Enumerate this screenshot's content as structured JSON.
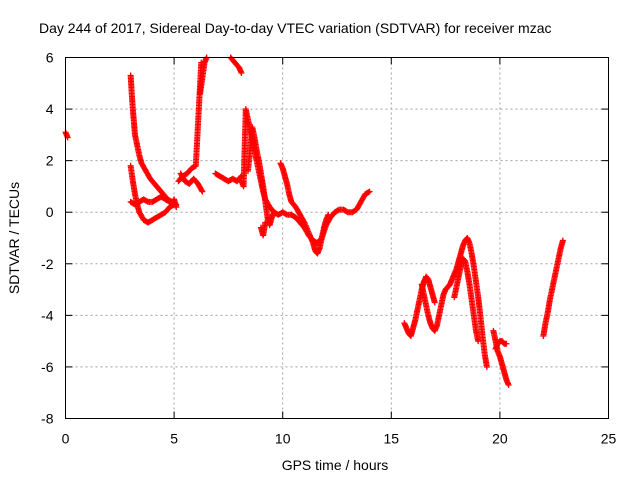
{
  "chart_data": {
    "type": "scatter",
    "title": "Day 244 of 2017, Sidereal Day-to-day VTEC variation (SDTVAR) for receiver mzac",
    "xlabel": "GPS time / hours",
    "ylabel": "SDTVAR / TECUs",
    "xlim": [
      0,
      25
    ],
    "ylim": [
      -8,
      6
    ],
    "xticks": [
      0,
      5,
      10,
      15,
      20,
      25
    ],
    "xtick_labels": [
      "0",
      "5",
      "10",
      "15",
      "20",
      "25"
    ],
    "yticks": [
      -8,
      -6,
      -4,
      -2,
      0,
      2,
      4,
      6
    ],
    "ytick_labels": [
      "-8",
      "-6",
      "-4",
      "-2",
      "0",
      "2",
      "4",
      "6"
    ],
    "grid": true,
    "marker": "+",
    "marker_color": "#ff0000",
    "series": [
      {
        "name": "seg1",
        "points": [
          [
            0.0,
            3.1
          ],
          [
            0.1,
            2.9
          ]
        ]
      },
      {
        "name": "seg2",
        "points": [
          [
            3.0,
            5.3
          ],
          [
            3.05,
            4.6
          ],
          [
            3.1,
            4.0
          ],
          [
            3.15,
            3.5
          ],
          [
            3.2,
            3.0
          ],
          [
            3.3,
            2.6
          ],
          [
            3.4,
            2.2
          ],
          [
            3.5,
            1.9
          ],
          [
            3.7,
            1.6
          ],
          [
            3.9,
            1.3
          ],
          [
            4.1,
            1.1
          ],
          [
            4.3,
            0.9
          ],
          [
            4.5,
            0.7
          ],
          [
            4.7,
            0.5
          ],
          [
            4.9,
            0.4
          ],
          [
            5.1,
            0.3
          ]
        ]
      },
      {
        "name": "seg3",
        "points": [
          [
            3.0,
            1.8
          ],
          [
            3.1,
            1.2
          ],
          [
            3.2,
            0.7
          ],
          [
            3.3,
            0.3
          ],
          [
            3.4,
            0.0
          ],
          [
            3.6,
            -0.3
          ],
          [
            3.8,
            -0.4
          ],
          [
            4.0,
            -0.3
          ],
          [
            4.2,
            -0.2
          ],
          [
            4.4,
            -0.1
          ],
          [
            4.6,
            0.0
          ],
          [
            4.8,
            0.2
          ],
          [
            5.0,
            0.3
          ]
        ]
      },
      {
        "name": "seg4",
        "points": [
          [
            3.0,
            0.4
          ],
          [
            3.2,
            0.3
          ],
          [
            3.4,
            0.4
          ],
          [
            3.6,
            0.5
          ],
          [
            3.8,
            0.4
          ],
          [
            4.0,
            0.4
          ],
          [
            4.2,
            0.5
          ],
          [
            4.4,
            0.6
          ],
          [
            4.6,
            0.5
          ],
          [
            4.8,
            0.4
          ]
        ]
      },
      {
        "name": "seg5",
        "points": [
          [
            4.9,
            0.3
          ],
          [
            5.0,
            0.5
          ],
          [
            5.1,
            0.2
          ]
        ]
      },
      {
        "name": "seg6",
        "points": [
          [
            5.2,
            1.2
          ],
          [
            5.4,
            1.4
          ],
          [
            5.6,
            1.5
          ],
          [
            5.8,
            1.7
          ],
          [
            6.0,
            1.8
          ],
          [
            6.05,
            2.6
          ],
          [
            6.1,
            3.4
          ],
          [
            6.15,
            4.2
          ],
          [
            6.2,
            5.0
          ],
          [
            6.25,
            5.8
          ]
        ]
      },
      {
        "name": "seg7",
        "points": [
          [
            5.3,
            1.5
          ],
          [
            5.5,
            1.2
          ],
          [
            5.7,
            1.1
          ],
          [
            5.9,
            1.3
          ],
          [
            6.1,
            1.1
          ],
          [
            6.3,
            0.8
          ]
        ]
      },
      {
        "name": "seg8",
        "points": [
          [
            6.2,
            4.6
          ],
          [
            6.3,
            5.2
          ],
          [
            6.4,
            5.8
          ],
          [
            6.5,
            6.0
          ]
        ]
      },
      {
        "name": "seg9",
        "points": [
          [
            7.6,
            6.0
          ],
          [
            7.8,
            5.8
          ],
          [
            8.0,
            5.6
          ],
          [
            8.1,
            5.4
          ]
        ]
      },
      {
        "name": "seg10",
        "points": [
          [
            6.9,
            1.5
          ],
          [
            7.1,
            1.4
          ],
          [
            7.3,
            1.3
          ],
          [
            7.5,
            1.2
          ],
          [
            7.7,
            1.3
          ],
          [
            7.9,
            1.2
          ],
          [
            8.1,
            1.4
          ]
        ]
      },
      {
        "name": "seg11",
        "points": [
          [
            8.1,
            1.2
          ],
          [
            8.2,
            1.0
          ],
          [
            8.3,
            4.0
          ],
          [
            8.4,
            3.6
          ],
          [
            8.5,
            3.2
          ],
          [
            8.6,
            2.8
          ],
          [
            8.7,
            2.4
          ],
          [
            8.8,
            2.0
          ],
          [
            8.9,
            1.6
          ],
          [
            9.0,
            1.2
          ],
          [
            9.1,
            0.8
          ],
          [
            9.2,
            0.5
          ],
          [
            9.4,
            0.2
          ],
          [
            9.6,
            0.0
          ],
          [
            9.8,
            -0.1
          ],
          [
            10.0,
            0.0
          ],
          [
            10.2,
            -0.1
          ],
          [
            10.4,
            -0.1
          ]
        ]
      },
      {
        "name": "seg12",
        "points": [
          [
            8.4,
            1.6
          ],
          [
            8.5,
            2.4
          ],
          [
            8.6,
            3.3
          ],
          [
            8.7,
            2.9
          ],
          [
            8.8,
            2.4
          ],
          [
            8.9,
            2.0
          ],
          [
            9.0,
            1.5
          ],
          [
            9.1,
            1.0
          ],
          [
            9.2,
            0.4
          ],
          [
            9.3,
            -0.2
          ],
          [
            9.4,
            -0.5
          ],
          [
            9.5,
            -0.2
          ],
          [
            9.6,
            0.0
          ]
        ]
      },
      {
        "name": "seg13",
        "points": [
          [
            9.0,
            -0.6
          ],
          [
            9.1,
            -0.9
          ],
          [
            9.2,
            -0.4
          ]
        ]
      },
      {
        "name": "seg14",
        "points": [
          [
            9.9,
            1.9
          ],
          [
            10.0,
            1.7
          ],
          [
            10.1,
            1.4
          ],
          [
            10.2,
            1.1
          ],
          [
            10.3,
            0.7
          ],
          [
            10.4,
            0.4
          ],
          [
            10.6,
            0.2
          ],
          [
            10.8,
            -0.1
          ],
          [
            11.0,
            -0.4
          ],
          [
            11.2,
            -0.8
          ],
          [
            11.4,
            -1.2
          ],
          [
            11.5,
            -1.5
          ],
          [
            11.6,
            -1.6
          ],
          [
            11.7,
            -1.4
          ],
          [
            11.8,
            -1.0
          ],
          [
            11.9,
            -0.6
          ],
          [
            12.0,
            -0.3
          ],
          [
            12.1,
            -0.1
          ]
        ]
      },
      {
        "name": "seg15",
        "points": [
          [
            10.4,
            -0.1
          ],
          [
            10.6,
            -0.2
          ],
          [
            10.8,
            -0.4
          ],
          [
            11.0,
            -0.6
          ],
          [
            11.2,
            -0.9
          ],
          [
            11.4,
            -1.1
          ],
          [
            11.6,
            -1.2
          ],
          [
            11.8,
            -1.0
          ],
          [
            12.0,
            -0.5
          ],
          [
            12.2,
            -0.2
          ],
          [
            12.4,
            0.0
          ],
          [
            12.6,
            0.1
          ],
          [
            12.8,
            0.1
          ],
          [
            13.0,
            0.0
          ],
          [
            13.2,
            0.0
          ],
          [
            13.4,
            0.1
          ],
          [
            13.6,
            0.4
          ],
          [
            13.8,
            0.7
          ],
          [
            14.0,
            0.8
          ]
        ]
      },
      {
        "name": "seg16",
        "points": [
          [
            15.6,
            -4.3
          ],
          [
            15.7,
            -4.5
          ],
          [
            15.8,
            -4.7
          ],
          [
            15.9,
            -4.8
          ],
          [
            16.0,
            -4.5
          ],
          [
            16.1,
            -4.2
          ],
          [
            16.2,
            -3.8
          ],
          [
            16.3,
            -3.4
          ],
          [
            16.4,
            -3.0
          ],
          [
            16.5,
            -2.7
          ],
          [
            16.6,
            -2.5
          ],
          [
            16.7,
            -2.6
          ],
          [
            16.8,
            -2.9
          ],
          [
            16.9,
            -3.2
          ],
          [
            17.0,
            -3.5
          ]
        ]
      },
      {
        "name": "seg17",
        "points": [
          [
            16.4,
            -2.8
          ],
          [
            16.5,
            -3.2
          ],
          [
            16.6,
            -3.6
          ],
          [
            16.7,
            -4.0
          ],
          [
            16.8,
            -4.3
          ],
          [
            16.9,
            -4.5
          ],
          [
            17.0,
            -4.6
          ],
          [
            17.1,
            -4.4
          ],
          [
            17.2,
            -4.0
          ],
          [
            17.3,
            -3.6
          ],
          [
            17.4,
            -3.2
          ],
          [
            17.5,
            -3.0
          ],
          [
            17.6,
            -2.9
          ],
          [
            17.7,
            -2.8
          ],
          [
            17.8,
            -2.6
          ],
          [
            17.9,
            -2.4
          ],
          [
            18.0,
            -2.2
          ],
          [
            18.1,
            -1.9
          ],
          [
            18.2,
            -1.6
          ],
          [
            18.3,
            -1.3
          ],
          [
            18.4,
            -1.1
          ],
          [
            18.5,
            -1.0
          ],
          [
            18.6,
            -1.2
          ],
          [
            18.7,
            -1.6
          ],
          [
            18.8,
            -2.1
          ],
          [
            18.9,
            -2.7
          ],
          [
            19.0,
            -3.3
          ],
          [
            19.1,
            -4.0
          ],
          [
            19.2,
            -4.8
          ],
          [
            19.3,
            -5.5
          ],
          [
            19.4,
            -6.0
          ]
        ]
      },
      {
        "name": "seg18",
        "points": [
          [
            17.9,
            -3.3
          ],
          [
            18.0,
            -2.9
          ],
          [
            18.1,
            -2.5
          ],
          [
            18.2,
            -2.1
          ],
          [
            18.3,
            -1.8
          ],
          [
            18.4,
            -1.9
          ],
          [
            18.5,
            -2.3
          ],
          [
            18.6,
            -2.8
          ],
          [
            18.7,
            -3.4
          ],
          [
            18.8,
            -4.0
          ],
          [
            18.9,
            -4.6
          ],
          [
            19.0,
            -5.0
          ]
        ]
      },
      {
        "name": "seg19",
        "points": [
          [
            19.7,
            -4.6
          ],
          [
            19.8,
            -5.0
          ],
          [
            19.9,
            -5.4
          ],
          [
            20.0,
            -5.6
          ],
          [
            20.1,
            -5.9
          ],
          [
            20.2,
            -6.2
          ],
          [
            20.3,
            -6.5
          ],
          [
            20.4,
            -6.7
          ]
        ]
      },
      {
        "name": "seg20",
        "points": [
          [
            19.8,
            -5.3
          ],
          [
            19.9,
            -5.1
          ],
          [
            20.0,
            -5.0
          ],
          [
            20.1,
            -5.0
          ],
          [
            20.2,
            -5.1
          ],
          [
            20.3,
            -5.1
          ]
        ]
      },
      {
        "name": "seg21",
        "points": [
          [
            22.0,
            -4.8
          ],
          [
            22.1,
            -4.3
          ],
          [
            22.2,
            -3.9
          ],
          [
            22.3,
            -3.4
          ],
          [
            22.4,
            -3.0
          ],
          [
            22.5,
            -2.6
          ],
          [
            22.6,
            -2.2
          ],
          [
            22.7,
            -1.8
          ],
          [
            22.8,
            -1.4
          ],
          [
            22.9,
            -1.1
          ]
        ]
      }
    ]
  }
}
